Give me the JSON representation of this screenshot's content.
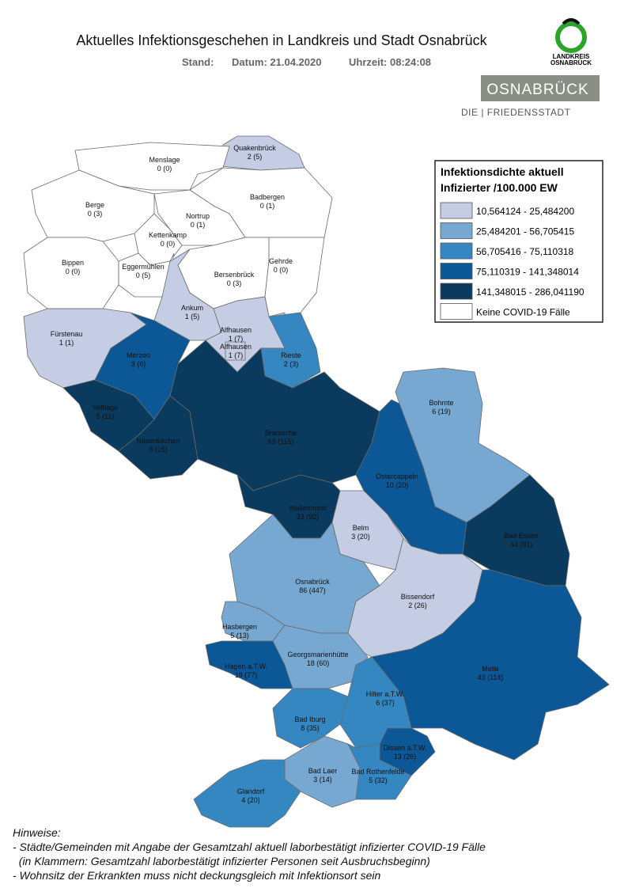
{
  "header": {
    "title": "Aktuelles Infektionsgeschehen in Landkreis und Stadt Osnabrück",
    "stand": "Stand:",
    "datum": "Datum: 21.04.2020",
    "uhrzeit": "Uhrzeit: 08:24:08"
  },
  "logos": {
    "landkreis": [
      "LANDKREIS",
      "OSNABRÜCK"
    ],
    "stadt": "OSNABRÜCK",
    "stadt_sub": "DIE | FRIEDENSSTADT"
  },
  "legend": {
    "title": [
      "Infektionsdichte aktuell",
      "Infizierter /100.000 EW"
    ],
    "classes": [
      {
        "label": "10,564124 - 25,484200",
        "color": "#c4cde4"
      },
      {
        "label": "25,484201 - 56,705415",
        "color": "#77a8d2"
      },
      {
        "label": "56,705416 - 75,110318",
        "color": "#3587c2"
      },
      {
        "label": "75,110319 - 141,348014",
        "color": "#0c5897"
      },
      {
        "label": "141,348015 - 286,041190",
        "color": "#0a3a5d"
      },
      {
        "label": "Keine COVID-19 Fälle",
        "color": "#ffffff"
      }
    ]
  },
  "regions": [
    {
      "name": "Quakenbrück",
      "label": "2 (5)",
      "class": 0
    },
    {
      "name": "Menslage",
      "label": "0 (0)",
      "class": 5
    },
    {
      "name": "Berge",
      "label": "0 (3)",
      "class": 5
    },
    {
      "name": "Badbergen",
      "label": "0 (1)",
      "class": 5
    },
    {
      "name": "Nortrup",
      "label": "0 (1)",
      "class": 5
    },
    {
      "name": "Kettenkamp",
      "label": "0 (0)",
      "class": 5
    },
    {
      "name": "Bippen",
      "label": "0 (0)",
      "class": 5
    },
    {
      "name": "Eggermühlen",
      "label": "0 (5)",
      "class": 5
    },
    {
      "name": "Bersenbrück",
      "label": "0 (3)",
      "class": 5
    },
    {
      "name": "Gehrde",
      "label": "0 (0)",
      "class": 5
    },
    {
      "name": "Fürstenau",
      "label": "1 (1)",
      "class": 0
    },
    {
      "name": "Ankum",
      "label": "1 (5)",
      "class": 0
    },
    {
      "name": "Alfhausen",
      "label": "1 (7)",
      "class": 0
    },
    {
      "name": "Alfhausen",
      "label": "1 (7)",
      "class": 0
    },
    {
      "name": "Rieste",
      "label": "2 (3)",
      "class": 2
    },
    {
      "name": "Merzen",
      "label": "3 (6)",
      "class": 3
    },
    {
      "name": "Voltlage",
      "label": "5 (11)",
      "class": 4
    },
    {
      "name": "Neuenkirchen",
      "label": "8 (15)",
      "class": 4
    },
    {
      "name": "Bramsche",
      "label": "63 (115)",
      "class": 4
    },
    {
      "name": "Bohmte",
      "label": "6 (19)",
      "class": 1
    },
    {
      "name": "Ostercappeln",
      "label": "10 (20)",
      "class": 3
    },
    {
      "name": "Wallenhorst",
      "label": "33 (92)",
      "class": 4
    },
    {
      "name": "Belm",
      "label": "3 (20)",
      "class": 0
    },
    {
      "name": "Bad Essen",
      "label": "44 (91)",
      "class": 4
    },
    {
      "name": "Osnabrück",
      "label": "86 (447)",
      "class": 1
    },
    {
      "name": "Bissendorf",
      "label": "2 (26)",
      "class": 0
    },
    {
      "name": "Hasbergen",
      "label": "5 (13)",
      "class": 1
    },
    {
      "name": "Hagen a.T.W.",
      "label": "19 (77)",
      "class": 3
    },
    {
      "name": "Georgsmarienhütte",
      "label": "18 (60)",
      "class": 1
    },
    {
      "name": "Melle",
      "label": "43 (114)",
      "class": 3
    },
    {
      "name": "Hilter a.T.W.",
      "label": "6 (37)",
      "class": 2
    },
    {
      "name": "Bad Iburg",
      "label": "8 (35)",
      "class": 2
    },
    {
      "name": "Dissen a.T.W.",
      "label": "13 (26)",
      "class": 3
    },
    {
      "name": "Bad Laer",
      "label": "3 (14)",
      "class": 1
    },
    {
      "name": "Bad Rothenfelde",
      "label": "5 (32)",
      "class": 2
    },
    {
      "name": "Glandorf",
      "label": "4 (20)",
      "class": 2
    }
  ],
  "notes": [
    "Hinweise:",
    "- Städte/Gemeinden mit Angabe der Gesamtzahl aktuell laborbestätigt infizierter COVID-19 Fälle",
    "  (in Klammern: Gesamtzahl laborbestätigt infizierter Personen seit Ausbruchsbeginn)",
    "- Wohnsitz der Erkrankten muss nicht deckungsgleich mit Infektionsort sein"
  ]
}
